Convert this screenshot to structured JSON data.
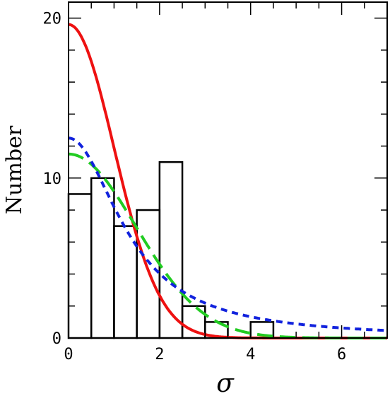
{
  "chart_data": {
    "type": "bar",
    "title": "",
    "xlabel": "σ",
    "ylabel": "Number",
    "xlim": [
      0,
      7
    ],
    "ylim": [
      0,
      21
    ],
    "x_ticks": [
      "0",
      "2",
      "4",
      "6"
    ],
    "y_ticks": [
      "0",
      "10",
      "20"
    ],
    "grid": false,
    "histogram": {
      "bin_width": 0.5,
      "bins": [
        {
          "x0": 0.0,
          "value": 9
        },
        {
          "x0": 0.5,
          "value": 10
        },
        {
          "x0": 1.0,
          "value": 7
        },
        {
          "x0": 1.5,
          "value": 8
        },
        {
          "x0": 2.0,
          "value": 11
        },
        {
          "x0": 2.5,
          "value": 2
        },
        {
          "x0": 3.0,
          "value": 1
        },
        {
          "x0": 3.5,
          "value": 0
        },
        {
          "x0": 4.0,
          "value": 1
        },
        {
          "x0": 4.5,
          "value": 0
        }
      ]
    },
    "series": [
      {
        "style": "solid",
        "color": "#ee1111",
        "model": "gaussian",
        "amplitude": 19.6,
        "sigma": 1.0
      },
      {
        "style": "long-dashed",
        "color": "#22cc22",
        "model": "gaussian",
        "amplitude": 11.5,
        "sigma": 1.48
      },
      {
        "style": "short-dashed",
        "color": "#1122dd",
        "model": "lorentzian",
        "amplitude": 12.5,
        "gamma": 1.38
      }
    ]
  }
}
